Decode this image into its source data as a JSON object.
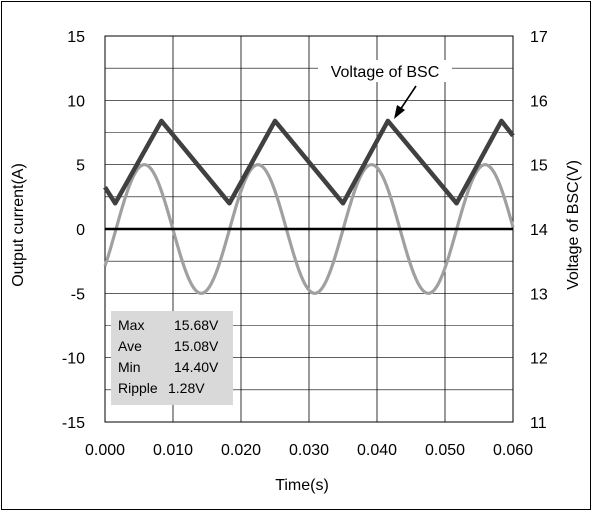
{
  "chart_data": {
    "type": "line",
    "title": "",
    "xlabel": "Time(s)",
    "ylabel_left": "Output current(A)",
    "ylabel_right": "Voltage of BSC(V)",
    "xlim": [
      0.0,
      0.06
    ],
    "ylim_left": [
      -15,
      15
    ],
    "ylim_right": [
      11,
      17
    ],
    "x_ticks": [
      "0.000",
      "0.010",
      "0.020",
      "0.030",
      "0.040",
      "0.050",
      "0.060"
    ],
    "y_left_ticks": [
      "15",
      "10",
      "5",
      "0",
      "-5",
      "-10",
      "-15"
    ],
    "y_right_ticks": [
      "17",
      "16",
      "15",
      "14",
      "13",
      "12",
      "11"
    ],
    "grid": true,
    "series": [
      {
        "name": "Voltage of BSC",
        "axis": "right",
        "color": "#404040",
        "x": [
          0.0,
          0.0015,
          0.0083,
          0.0183,
          0.025,
          0.035,
          0.0416,
          0.0517,
          0.0583,
          0.06
        ],
        "y": [
          14.65,
          14.4,
          15.68,
          14.4,
          15.68,
          14.4,
          15.68,
          14.4,
          15.68,
          15.45
        ]
      },
      {
        "name": "",
        "axis": "left",
        "color": "#a0a0a0",
        "type": "sine",
        "amplitude": 5,
        "period": 0.0167,
        "peak_times": [
          0.0058,
          0.0225,
          0.0391,
          0.0558
        ]
      }
    ],
    "zero_line": 0,
    "annotation": {
      "text": "Voltage of BSC",
      "points_to": [
        0.0416,
        15.68
      ]
    },
    "stats_box": {
      "rows": [
        {
          "label": "Max",
          "value": "15.68V"
        },
        {
          "label": "Ave",
          "value": "15.08V"
        },
        {
          "label": "Min",
          "value": "14.40V"
        },
        {
          "label": "Ripple",
          "value": "1.28V"
        }
      ]
    }
  }
}
